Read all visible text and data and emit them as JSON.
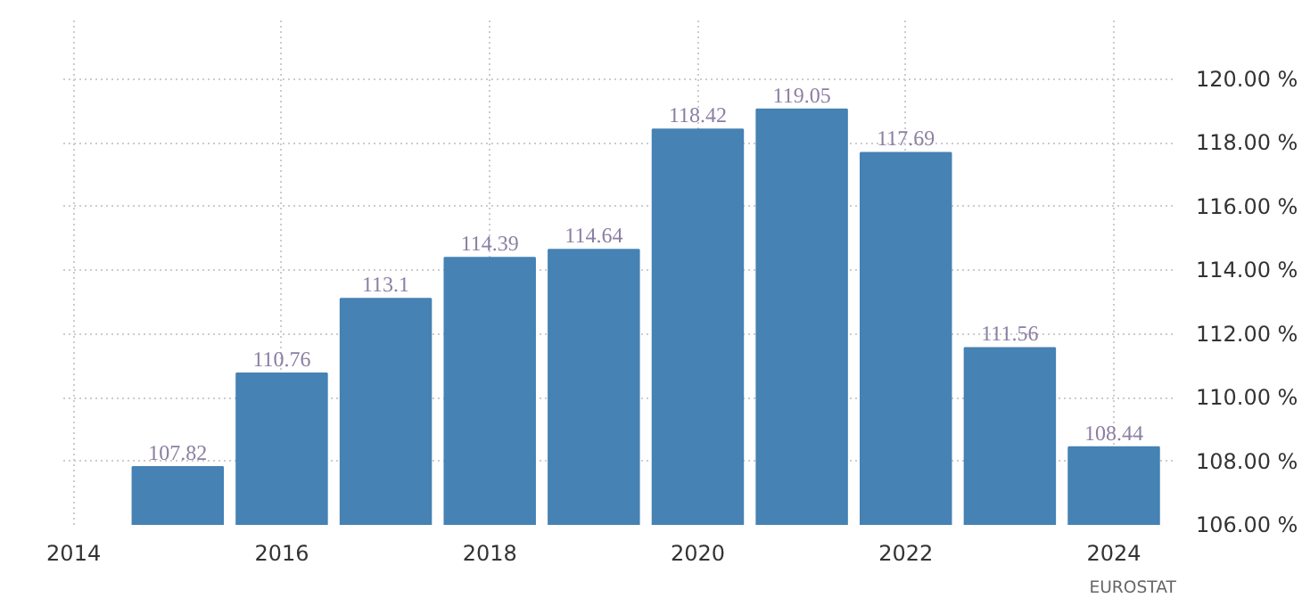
{
  "chart_data": {
    "type": "bar",
    "x": [
      2015,
      2016,
      2017,
      2018,
      2019,
      2020,
      2021,
      2022,
      2023,
      2024
    ],
    "values": [
      107.82,
      110.76,
      113.1,
      114.39,
      114.64,
      118.42,
      119.05,
      117.69,
      111.56,
      108.44
    ],
    "color": "#4682b4",
    "data_labels": true,
    "xlim": [
      2013.9,
      2024.6
    ],
    "xticks": [
      2014,
      2016,
      2018,
      2020,
      2022,
      2024
    ],
    "ylim": [
      106,
      121.9
    ],
    "yticks": [
      {
        "value": 106,
        "label": "106.00 %"
      },
      {
        "value": 108,
        "label": "108.00 %"
      },
      {
        "value": 110,
        "label": "110.00 %"
      },
      {
        "value": 112,
        "label": "112.00 %"
      },
      {
        "value": 114,
        "label": "114.00 %"
      },
      {
        "value": 116,
        "label": "116.00 %"
      },
      {
        "value": 118,
        "label": "118.00 %"
      },
      {
        "value": 120,
        "label": "120.00 %"
      }
    ],
    "grid": true,
    "annotations": [
      "EUROSTAT"
    ]
  }
}
